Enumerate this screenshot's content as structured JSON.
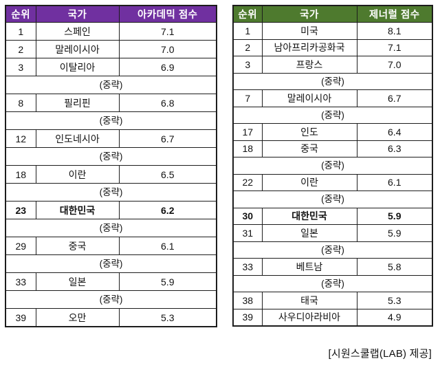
{
  "caption": "[시원스쿨랩(LAB) 제공]",
  "colors": {
    "academic_header": "#7030A0",
    "general_header": "#4E7A2E",
    "table_border": "#1c1c1c",
    "body_text": "#111111",
    "header_text": "#ffffff",
    "page_bg": "#ffffff"
  },
  "ellipsis_label": "(중략)",
  "chart_data": [
    {
      "type": "table",
      "name": "academic-score-ranking",
      "header_bg": "#7030A0",
      "columns": [
        "순위",
        "국가",
        "아카데믹 점수"
      ],
      "highlighted_country": "대한민국",
      "rows": [
        {
          "rank": "1",
          "country": "스페인",
          "score": "7.1"
        },
        {
          "rank": "2",
          "country": "말레이시아",
          "score": "7.0"
        },
        {
          "rank": "3",
          "country": "이탈리아",
          "score": "6.9"
        },
        {
          "ellipsis": "(중략)"
        },
        {
          "rank": "8",
          "country": "필리핀",
          "score": "6.8"
        },
        {
          "ellipsis": "(중략)"
        },
        {
          "rank": "12",
          "country": "인도네시아",
          "score": "6.7"
        },
        {
          "ellipsis": "(중략)"
        },
        {
          "rank": "18",
          "country": "이란",
          "score": "6.5"
        },
        {
          "ellipsis": "(중략)"
        },
        {
          "rank": "23",
          "country": "대한민국",
          "score": "6.2",
          "bold": true
        },
        {
          "ellipsis": "(중략)"
        },
        {
          "rank": "29",
          "country": "중국",
          "score": "6.1"
        },
        {
          "ellipsis": "(중략)"
        },
        {
          "rank": "33",
          "country": "일본",
          "score": "5.9"
        },
        {
          "ellipsis": "(중략)"
        },
        {
          "rank": "39",
          "country": "오만",
          "score": "5.3"
        }
      ]
    },
    {
      "type": "table",
      "name": "general-score-ranking",
      "header_bg": "#4E7A2E",
      "columns": [
        "순위",
        "국가",
        "제너럴 점수"
      ],
      "highlighted_country": "대한민국",
      "rows": [
        {
          "rank": "1",
          "country": "미국",
          "score": "8.1"
        },
        {
          "rank": "2",
          "country": "남아프리카공화국",
          "score": "7.1"
        },
        {
          "rank": "3",
          "country": "프랑스",
          "score": "7.0"
        },
        {
          "ellipsis": "(중략)"
        },
        {
          "rank": "7",
          "country": "말레이시아",
          "score": "6.7"
        },
        {
          "ellipsis": "(중략)"
        },
        {
          "rank": "17",
          "country": "인도",
          "score": "6.4"
        },
        {
          "rank": "18",
          "country": "중국",
          "score": "6.3"
        },
        {
          "ellipsis": "(중략)"
        },
        {
          "rank": "22",
          "country": "이란",
          "score": "6.1"
        },
        {
          "ellipsis": "(중략)"
        },
        {
          "rank": "30",
          "country": "대한민국",
          "score": "5.9",
          "bold": true
        },
        {
          "rank": "31",
          "country": "일본",
          "score": "5.9"
        },
        {
          "ellipsis": "(중략)"
        },
        {
          "rank": "33",
          "country": "베트남",
          "score": "5.8"
        },
        {
          "ellipsis": "(중략)"
        },
        {
          "rank": "38",
          "country": "태국",
          "score": "5.3"
        },
        {
          "rank": "39",
          "country": "사우디아라비아",
          "score": "4.9"
        }
      ]
    }
  ]
}
